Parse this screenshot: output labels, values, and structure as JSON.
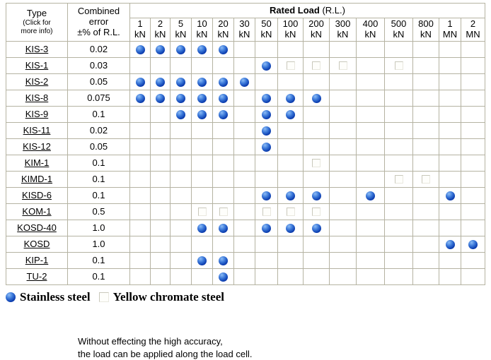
{
  "table": {
    "type_header": {
      "title": "Type",
      "subtitle_line1": "(Click for",
      "subtitle_line2": "more info)"
    },
    "error_header": {
      "line1": "Combined",
      "line2": "error",
      "line3": "±% of R.L."
    },
    "rated_load_header": {
      "bold": "Rated Load",
      "normal": "(R.L.)"
    },
    "columns": [
      {
        "value": "1",
        "unit": "kN"
      },
      {
        "value": "2",
        "unit": "kN"
      },
      {
        "value": "5",
        "unit": "kN"
      },
      {
        "value": "10",
        "unit": "kN"
      },
      {
        "value": "20",
        "unit": "kN"
      },
      {
        "value": "30",
        "unit": "kN"
      },
      {
        "value": "50",
        "unit": "kN"
      },
      {
        "value": "100",
        "unit": "kN"
      },
      {
        "value": "200",
        "unit": "kN"
      },
      {
        "value": "300",
        "unit": "kN"
      },
      {
        "value": "400",
        "unit": "kN"
      },
      {
        "value": "500",
        "unit": "kN"
      },
      {
        "value": "800",
        "unit": "kN"
      },
      {
        "value": "1",
        "unit": "MN"
      },
      {
        "value": "2",
        "unit": "MN"
      }
    ],
    "rows": [
      {
        "type": "KIS-3",
        "error": "0.02",
        "cells": [
          "ball",
          "ball",
          "ball",
          "ball",
          "ball",
          "",
          "",
          "",
          "",
          "",
          "",
          "",
          "",
          "",
          ""
        ]
      },
      {
        "type": "KIS-1",
        "error": "0.03",
        "cells": [
          "",
          "",
          "",
          "",
          "",
          "",
          "ball",
          "square",
          "square",
          "square",
          "",
          "square",
          "",
          "",
          ""
        ]
      },
      {
        "type": "KIS-2",
        "error": "0.05",
        "cells": [
          "ball",
          "ball",
          "ball",
          "ball",
          "ball",
          "ball",
          "",
          "",
          "",
          "",
          "",
          "",
          "",
          "",
          ""
        ]
      },
      {
        "type": "KIS-8",
        "error": "0.075",
        "cells": [
          "ball",
          "ball",
          "ball",
          "ball",
          "ball",
          "",
          "ball",
          "ball",
          "ball",
          "",
          "",
          "",
          "",
          "",
          ""
        ]
      },
      {
        "type": "KIS-9",
        "error": "0.1",
        "cells": [
          "",
          "",
          "ball",
          "ball",
          "ball",
          "",
          "ball",
          "ball",
          "",
          "",
          "",
          "",
          "",
          "",
          ""
        ]
      },
      {
        "type": "KIS-11",
        "error": "0.02",
        "cells": [
          "",
          "",
          "",
          "",
          "",
          "",
          "ball",
          "",
          "",
          "",
          "",
          "",
          "",
          "",
          ""
        ]
      },
      {
        "type": "KIS-12",
        "error": "0.05",
        "cells": [
          "",
          "",
          "",
          "",
          "",
          "",
          "ball",
          "",
          "",
          "",
          "",
          "",
          "",
          "",
          ""
        ]
      },
      {
        "type": "KIM-1",
        "error": "0.1",
        "cells": [
          "",
          "",
          "",
          "",
          "",
          "",
          "",
          "",
          "square",
          "",
          "",
          "",
          "",
          "",
          ""
        ]
      },
      {
        "type": "KIMD-1",
        "error": "0.1",
        "cells": [
          "",
          "",
          "",
          "",
          "",
          "",
          "",
          "",
          "",
          "",
          "",
          "square",
          "square",
          "",
          ""
        ]
      },
      {
        "type": "KISD-6",
        "error": "0.1",
        "cells": [
          "",
          "",
          "",
          "",
          "",
          "",
          "ball",
          "ball",
          "ball",
          "",
          "ball",
          "",
          "",
          "ball",
          ""
        ]
      },
      {
        "type": "KOM-1",
        "error": "0.5",
        "cells": [
          "",
          "",
          "",
          "square",
          "square",
          "",
          "square",
          "square",
          "square",
          "",
          "",
          "",
          "",
          "",
          ""
        ]
      },
      {
        "type": "KOSD-40",
        "error": "1.0",
        "cells": [
          "",
          "",
          "",
          "ball",
          "ball",
          "",
          "ball",
          "ball",
          "ball",
          "",
          "",
          "",
          "",
          "",
          ""
        ]
      },
      {
        "type": "KOSD",
        "error": "1.0",
        "cells": [
          "",
          "",
          "",
          "",
          "",
          "",
          "",
          "",
          "",
          "",
          "",
          "",
          "",
          "ball",
          "ball"
        ]
      },
      {
        "type": "KIP-1",
        "error": "0.1",
        "cells": [
          "",
          "",
          "",
          "ball",
          "ball",
          "",
          "",
          "",
          "",
          "",
          "",
          "",
          "",
          "",
          ""
        ]
      },
      {
        "type": "TU-2",
        "error": "0.1",
        "cells": [
          "",
          "",
          "",
          "",
          "ball",
          "",
          "",
          "",
          "",
          "",
          "",
          "",
          "",
          "",
          ""
        ]
      }
    ]
  },
  "legend": {
    "stainless": "Stainless steel",
    "chromate": "Yellow chromate steel"
  },
  "note": {
    "line1": "Without effecting the high accuracy,",
    "line2": "the load can be applied along the load cell."
  },
  "colors": {
    "ball_blue_dark": "#032383",
    "ball_blue_mid": "#0b3cae",
    "ball_blue_highlight": "#8cbcf6",
    "table_border": "#b5b3a2",
    "square_border": "#c9c8bb"
  }
}
